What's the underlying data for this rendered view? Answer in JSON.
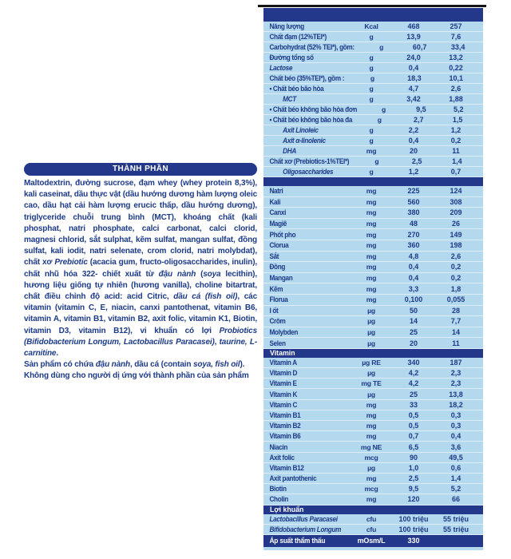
{
  "colors": {
    "navy": "#23388b",
    "rowbg": "#b4d8ee",
    "ink": "#1c3a87",
    "line": "#151515"
  },
  "ingredients_panel": {
    "title": "THÀNH PHẦN",
    "paragraphs": [
      [
        {
          "t": "Maltodextrin, đường sucrose, đạm whey (whey protein 8,3%), kali caseinat, dầu thực vật (dầu hướng dương hàm lượng oleic cao, dầu hạt cải hàm lượng erucic thấp, dầu hướng dương), triglyceride chuỗi trung bình (MCT), khoáng chất (kali phosphat, natri phosphate, calci carbonat, calci clorid, magnesi chlorid, sắt sulphat, kẽm sulfat, mangan sulfat, đồng sulfat, kali iodit, natri selenate, crom clorid, natri molybdat), chất xơ "
        },
        {
          "t": "Prebiotic",
          "i": true
        },
        {
          "t": " (acacia gum, fructo-oligosaccharides, inulin), chất nhũ hóa 322- chiết xuất từ "
        },
        {
          "t": "đậu nành",
          "i": true
        },
        {
          "t": " ("
        },
        {
          "t": "soya",
          "i": true
        },
        {
          "t": " lecithin), hương liệu giống tự nhiên (hương vanilla), choline bitartrat, chất điều chỉnh độ acid: acid Citric, "
        },
        {
          "t": "dầu cá (fish oil)",
          "i": true
        },
        {
          "t": ", các vitamin (vitamin C, E, niacin, canxi pantothenat, vitamin B6, vitamin A, vitamin B1, vitamin B2, axit folic, vitamin K1, Biotin, vitamin D3, vitamin B12), vi khuẩn có lợi "
        },
        {
          "t": "Probiotics (Bifidobacterium Longum, Lactobacillus Paracasei)",
          "i": true
        },
        {
          "t": ", "
        },
        {
          "t": "taurine, L-carnitine",
          "i": true
        },
        {
          "t": "."
        }
      ],
      [
        {
          "t": "Sản phẩm có chứa "
        },
        {
          "t": "đậu nành",
          "i": true
        },
        {
          "t": ", dầu cá (contain "
        },
        {
          "t": "soya, fish oil",
          "i": true
        },
        {
          "t": ")."
        }
      ],
      [
        {
          "t": "Không dùng cho người dị ứng với thành phần của sản phẩm"
        }
      ]
    ]
  },
  "nutrition_table": {
    "sections": [
      {
        "type": "rows",
        "cls": "sec-a",
        "rows": [
          {
            "label": "Năng lượng",
            "unit": "Kcal",
            "v1": "468",
            "v2": "257"
          },
          {
            "label": "Chất đạm (12%TEI*)",
            "unit": "g",
            "v1": "13,9",
            "v2": "7,6"
          },
          {
            "label": "Carbohydrat (52% TEI*), gồm:",
            "unit": "g",
            "v1": "60,7",
            "v2": "33,4"
          },
          {
            "label": "Đường tổng số",
            "unit": "g",
            "v1": "24,0",
            "v2": "13,2"
          },
          {
            "label": "Lactose",
            "unit": "g",
            "v1": "0,4",
            "v2": "0,22",
            "style": "it"
          },
          {
            "label": "Chất béo (35%TEI*), gồm :",
            "unit": "g",
            "v1": "18,3",
            "v2": "10,1"
          },
          {
            "label": "• Chất béo bão hòa",
            "unit": "g",
            "v1": "4,7",
            "v2": "2,6"
          },
          {
            "label": "MCT",
            "unit": "g",
            "v1": "3,42",
            "v2": "1,88",
            "style": "ind"
          },
          {
            "label": "• Chất béo không bão hòa đơn",
            "unit": "g",
            "v1": "9,5",
            "v2": "5,2"
          },
          {
            "label": "• Chất béo không bão hòa đa",
            "unit": "g",
            "v1": "2,7",
            "v2": "1,5"
          },
          {
            "label": "Axit Linoleic",
            "unit": "g",
            "v1": "2,2",
            "v2": "1,2",
            "style": "ind"
          },
          {
            "label": "Axit α-linolenic",
            "unit": "g",
            "v1": "0,4",
            "v2": "0,2",
            "style": "ind"
          },
          {
            "label": "DHA",
            "unit": "mg",
            "v1": "20",
            "v2": "11",
            "style": "ind"
          },
          {
            "label": "Chất xơ (Prebiotics-1%TEI*)",
            "unit": "g",
            "v1": "2,5",
            "v2": "1,4"
          },
          {
            "label": "Oligosaccharides",
            "unit": "g",
            "v1": "1,2",
            "v2": "0,7",
            "style": "ind"
          }
        ]
      },
      {
        "type": "bar",
        "name": "minerals-divider-bar",
        "label": ""
      },
      {
        "type": "rows",
        "cls": "sec-b",
        "rows": [
          {
            "label": "Natri",
            "unit": "mg",
            "v1": "225",
            "v2": "124"
          },
          {
            "label": "Kali",
            "unit": "mg",
            "v1": "560",
            "v2": "308"
          },
          {
            "label": "Canxi",
            "unit": "mg",
            "v1": "380",
            "v2": "209"
          },
          {
            "label": "Magiê",
            "unit": "mg",
            "v1": "48",
            "v2": "26"
          },
          {
            "label": "Phốt pho",
            "unit": "mg",
            "v1": "270",
            "v2": "149"
          },
          {
            "label": "Clorua",
            "unit": "mg",
            "v1": "360",
            "v2": "198"
          },
          {
            "label": "Sắt",
            "unit": "mg",
            "v1": "4,8",
            "v2": "2,6"
          },
          {
            "label": "Đồng",
            "unit": "mg",
            "v1": "0,4",
            "v2": "0,2"
          },
          {
            "label": "Mangan",
            "unit": "mg",
            "v1": "0,4",
            "v2": "0,2"
          },
          {
            "label": "Kẽm",
            "unit": "mg",
            "v1": "3,3",
            "v2": "1,8"
          },
          {
            "label": "Florua",
            "unit": "mg",
            "v1": "0,100",
            "v2": "0,055"
          },
          {
            "label": "I ốt",
            "unit": "µg",
            "v1": "50",
            "v2": "28"
          },
          {
            "label": "Crôm",
            "unit": "µg",
            "v1": "14",
            "v2": "7,7"
          },
          {
            "label": "Molybden",
            "unit": "µg",
            "v1": "25",
            "v2": "14"
          },
          {
            "label": "Selen",
            "unit": "µg",
            "v1": "20",
            "v2": "11"
          }
        ]
      },
      {
        "type": "bar",
        "name": "vitamin-section-bar",
        "label": "Vitamin"
      },
      {
        "type": "rows",
        "cls": "sec-c",
        "rows": [
          {
            "label": "Vitamin A",
            "unit": "µg RE",
            "v1": "340",
            "v2": "187"
          },
          {
            "label": "Vitamin D",
            "unit": "µg",
            "v1": "4,2",
            "v2": "2,3"
          },
          {
            "label": "Vitamin E",
            "unit": "mg TE",
            "v1": "4,2",
            "v2": "2,3"
          },
          {
            "label": "Vitamin K",
            "unit": "µg",
            "v1": "25",
            "v2": "13,8"
          },
          {
            "label": "Vitamin C",
            "unit": "mg",
            "v1": "33",
            "v2": "18,2"
          },
          {
            "label": "Vitamin B1",
            "unit": "mg",
            "v1": "0,5",
            "v2": "0,3"
          },
          {
            "label": "Vitamin B2",
            "unit": "mg",
            "v1": "0,5",
            "v2": "0,3"
          },
          {
            "label": "Vitamin B6",
            "unit": "mg",
            "v1": "0,7",
            "v2": "0,4"
          },
          {
            "label": "Niacin",
            "unit": "mg NE",
            "v1": "6,5",
            "v2": "3,6"
          },
          {
            "label": "Axit folic",
            "unit": "mcg",
            "v1": "90",
            "v2": "49,5"
          },
          {
            "label": "Vitamin B12",
            "unit": "µg",
            "v1": "1,0",
            "v2": "0,6"
          },
          {
            "label": "Axit pantothenic",
            "unit": "mg",
            "v1": "2,5",
            "v2": "1,4"
          },
          {
            "label": "Biotin",
            "unit": "mcg",
            "v1": "9,5",
            "v2": "5,2"
          },
          {
            "label": "Cholin",
            "unit": "mg",
            "v1": "120",
            "v2": "66"
          }
        ]
      },
      {
        "type": "bar",
        "name": "probiotics-section-bar",
        "label": "Lợi khuẩn"
      },
      {
        "type": "rows",
        "cls": "sec-d",
        "rows": [
          {
            "label": "Lactobacillus Paracasei",
            "unit": "cfu",
            "v1": "100 triệu",
            "v2": "55 triệu",
            "style": "it"
          },
          {
            "label": "Bifidobacterium Longum",
            "unit": "cfu",
            "v1": "100 triệu",
            "v2": "55 triệu",
            "style": "it"
          }
        ]
      },
      {
        "type": "footer",
        "label": "Áp suất thẩm thấu",
        "unit": "mOsm/L",
        "v1": "330",
        "v2": ""
      }
    ]
  }
}
